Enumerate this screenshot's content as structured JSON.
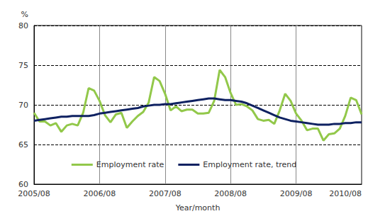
{
  "chart_data": {
    "type": "line",
    "xlabel": "Year/month",
    "ylabel": "%",
    "categories": [
      "2005/08",
      null,
      null,
      null,
      null,
      null,
      null,
      null,
      null,
      null,
      null,
      null,
      "2006/08",
      null,
      null,
      null,
      null,
      null,
      null,
      null,
      null,
      null,
      null,
      null,
      "2007/08",
      null,
      null,
      null,
      null,
      null,
      null,
      null,
      null,
      null,
      null,
      null,
      "2008/08",
      null,
      null,
      null,
      null,
      null,
      null,
      null,
      null,
      null,
      null,
      null,
      "2009/08",
      null,
      null,
      null,
      null,
      null,
      null,
      null,
      null,
      null,
      null,
      null,
      "2010/08"
    ],
    "series": [
      {
        "name": "Employment rate",
        "color": "#92c84a",
        "values": [
          69.0,
          67.9,
          67.9,
          67.4,
          67.7,
          66.6,
          67.4,
          67.6,
          67.4,
          69.0,
          72.1,
          71.8,
          70.5,
          68.7,
          67.8,
          68.8,
          69.0,
          67.1,
          67.9,
          68.6,
          69.1,
          70.3,
          73.5,
          73.0,
          71.4,
          69.3,
          69.8,
          69.2,
          69.4,
          69.4,
          68.9,
          68.9,
          69.0,
          70.5,
          74.4,
          73.5,
          71.5,
          70.0,
          70.1,
          69.8,
          69.3,
          68.2,
          68.0,
          68.1,
          67.6,
          69.3,
          71.4,
          70.5,
          68.9,
          68.0,
          66.8,
          67.0,
          67.0,
          65.5,
          66.3,
          66.4,
          67.0,
          68.6,
          70.9,
          70.6,
          68.8
        ]
      },
      {
        "name": "Employment rate, trend",
        "color": "#0e2161",
        "values": [
          68.0,
          68.1,
          68.2,
          68.3,
          68.4,
          68.5,
          68.5,
          68.6,
          68.6,
          68.6,
          68.6,
          68.7,
          68.9,
          69.0,
          69.1,
          69.2,
          69.3,
          69.4,
          69.5,
          69.6,
          69.8,
          69.9,
          70.0,
          70.0,
          70.1,
          70.1,
          70.2,
          70.3,
          70.4,
          70.5,
          70.6,
          70.7,
          70.8,
          70.8,
          70.7,
          70.6,
          70.6,
          70.5,
          70.4,
          70.2,
          69.9,
          69.6,
          69.3,
          69.0,
          68.7,
          68.4,
          68.2,
          68.0,
          67.9,
          67.8,
          67.7,
          67.6,
          67.5,
          67.5,
          67.5,
          67.6,
          67.6,
          67.7,
          67.7,
          67.8,
          67.8
        ]
      }
    ],
    "ylim": [
      60,
      80
    ],
    "yticks": [
      60,
      65,
      70,
      75,
      80
    ],
    "grid": true,
    "legend": "bottom"
  }
}
